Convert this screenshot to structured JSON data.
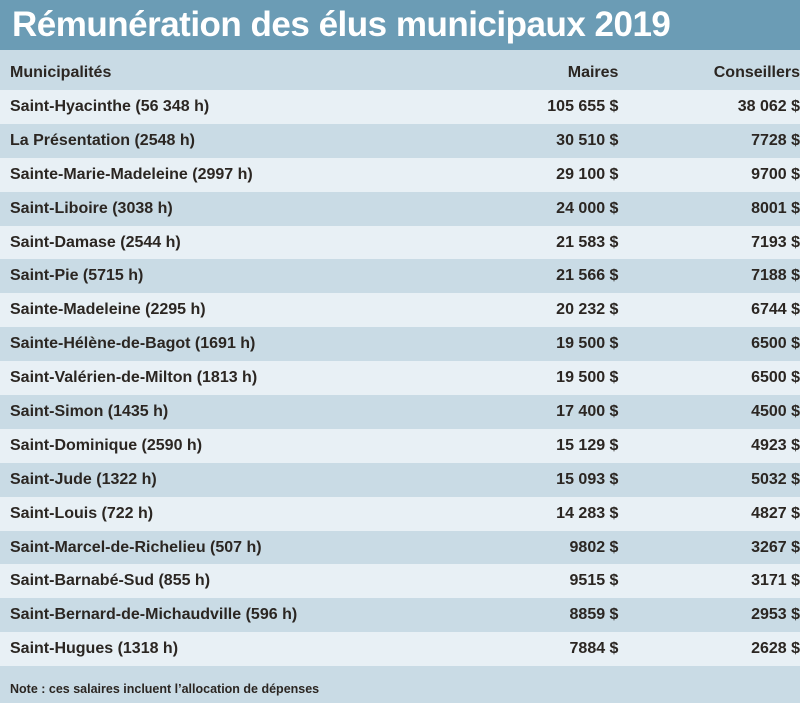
{
  "title": "Rémunération des élus municipaux 2019",
  "headers": {
    "municipality": "Municipalités",
    "mayors": "Maires",
    "councillors": "Conseillers"
  },
  "rows": [
    {
      "name": "Saint-Hyacinthe (56 348 h)",
      "mayor": "105 655 $",
      "councillor": "38 062 $"
    },
    {
      "name": "La Présentation (2548 h)",
      "mayor": "30 510 $",
      "councillor": "7728 $"
    },
    {
      "name": "Sainte-Marie-Madeleine (2997 h)",
      "mayor": "29 100 $",
      "councillor": "9700 $"
    },
    {
      "name": "Saint-Liboire (3038 h)",
      "mayor": "24 000 $",
      "councillor": "8001 $"
    },
    {
      "name": "Saint-Damase (2544 h)",
      "mayor": "21 583 $",
      "councillor": "7193 $"
    },
    {
      "name": "Saint-Pie (5715 h)",
      "mayor": "21 566 $",
      "councillor": "7188 $"
    },
    {
      "name": "Sainte-Madeleine (2295 h)",
      "mayor": "20 232 $",
      "councillor": "6744 $"
    },
    {
      "name": "Sainte-Hélène-de-Bagot (1691 h)",
      "mayor": "19 500 $",
      "councillor": "6500 $"
    },
    {
      "name": "Saint-Valérien-de-Milton (1813 h)",
      "mayor": "19 500 $",
      "councillor": "6500 $"
    },
    {
      "name": "Saint-Simon (1435 h)",
      "mayor": "17 400 $",
      "councillor": "4500 $"
    },
    {
      "name": "Saint-Dominique (2590 h)",
      "mayor": "15 129 $",
      "councillor": "4923 $"
    },
    {
      "name": "Saint-Jude (1322 h)",
      "mayor": "15 093 $",
      "councillor": "5032 $"
    },
    {
      "name": "Saint-Louis (722 h)",
      "mayor": "14 283 $",
      "councillor": "4827 $"
    },
    {
      "name": "Saint-Marcel-de-Richelieu (507 h)",
      "mayor": "9802 $",
      "councillor": "3267 $"
    },
    {
      "name": "Saint-Barnabé-Sud (855 h)",
      "mayor": "9515 $",
      "councillor": "3171 $"
    },
    {
      "name": "Saint-Bernard-de-Michaudville (596 h)",
      "mayor": "8859 $",
      "councillor": "2953 $"
    },
    {
      "name": "Saint-Hugues (1318 h)",
      "mayor": "7884 $",
      "councillor": "2628 $"
    }
  ],
  "note": "Note : ces salaires incluent l’allocation de dépenses"
}
